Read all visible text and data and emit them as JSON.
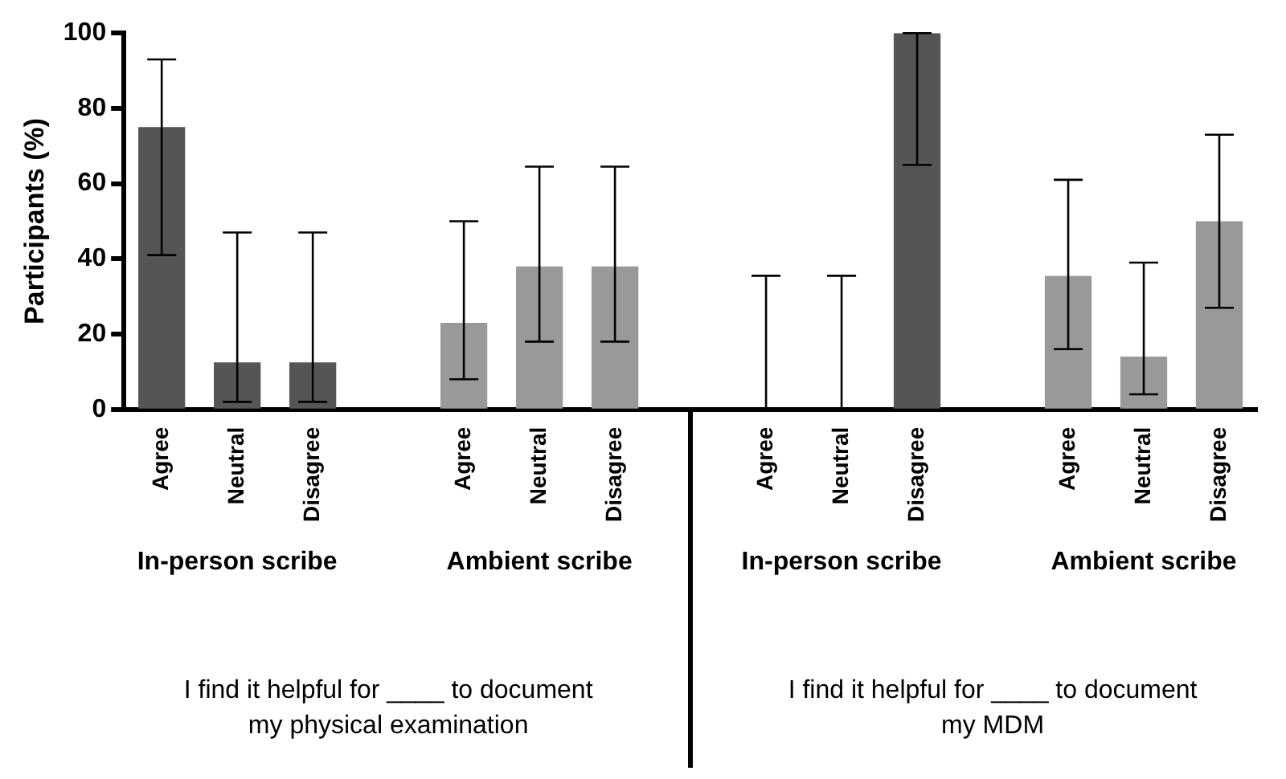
{
  "chart_data": {
    "type": "bar",
    "ylabel": "Participants (%)",
    "categories": [
      "Agree",
      "Neutral",
      "Disagree",
      null,
      "Agree",
      "Neutral",
      "Disagree",
      null,
      "Agree",
      "Neutral",
      "Disagree",
      null,
      "Agree",
      "Neutral",
      "Disagree"
    ],
    "values": [
      75,
      12.5,
      12.5,
      null,
      23,
      38,
      38,
      null,
      0,
      0,
      100,
      null,
      35.5,
      14,
      50
    ],
    "colors": [
      "#555555",
      "#555555",
      "#555555",
      null,
      "#999999",
      "#999999",
      "#999999",
      null,
      "#555555",
      "#555555",
      "#555555",
      null,
      "#999999",
      "#999999",
      "#999999"
    ],
    "errors": [
      [
        41,
        93
      ],
      [
        2,
        47
      ],
      [
        2,
        47
      ],
      null,
      [
        8,
        50
      ],
      [
        18,
        64.5
      ],
      [
        18,
        64.5
      ],
      null,
      [
        0,
        35.5
      ],
      [
        0,
        35.5
      ],
      [
        65,
        100
      ],
      null,
      [
        16,
        61
      ],
      [
        4,
        39
      ],
      [
        27,
        73
      ]
    ],
    "ylim": [
      0,
      100
    ],
    "yticks": [
      0,
      20,
      40,
      60,
      80,
      100
    ],
    "grid": false,
    "legend": false,
    "annotations": [
      "In-person scribe",
      "Ambient scribe",
      "In-person scribe",
      "Ambient scribe",
      "I find it helpful for ____ to document\nmy physical examination",
      "I find it helpful for ____ to document\nmy MDM"
    ]
  }
}
